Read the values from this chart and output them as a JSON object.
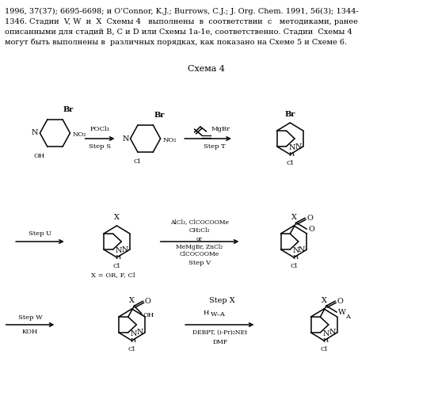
{
  "background_color": "#ffffff",
  "figsize": [
    5.48,
    5.0
  ],
  "dpi": 100,
  "scheme_title": "Схема 4",
  "header_lines": [
    "1996, 37(37); 6695-6698; и O’Connor, K.J.; Burrows, C.J.; J. Org. Chem. 1991, 56(3); 1344-",
    "1346. Стадии  V, W  и  X  Схемы 4   выполнены  в  соответствии  с   методиками, ранее",
    "описанными для стадий B, C и D или Схемы 1a-1e, соответственно. Стадии  Схемы 4",
    "могут быть выполнены в  различных порядках, как показано на Схеме 5 и Схеме 6."
  ]
}
